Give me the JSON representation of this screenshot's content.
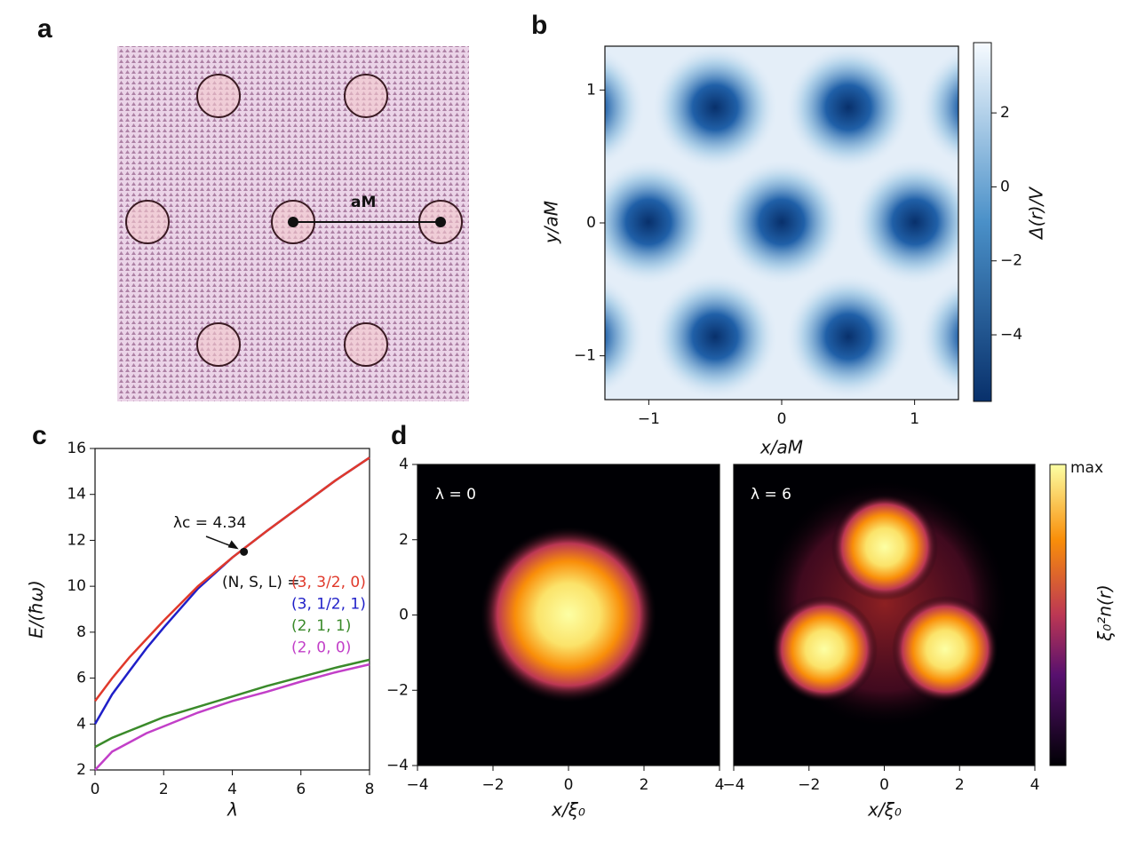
{
  "chart_data": [
    {
      "type": "image",
      "panel": "a",
      "annotation": "aM"
    },
    {
      "type": "heatmap",
      "panel": "b",
      "xlabel": "x/aM",
      "ylabel": "y/aM",
      "colorbar_label": "Δ(r)/V",
      "xlim": [
        -1.33,
        1.33
      ],
      "ylim": [
        -1.33,
        1.33
      ],
      "xticks": [
        {
          "value": -1,
          "label": "−1"
        },
        0,
        1
      ],
      "yticks": [
        {
          "value": -1,
          "label": "−1"
        },
        0,
        1
      ],
      "clim": [
        -5.8,
        3.9
      ],
      "cticks": [
        {
          "value": -4,
          "label": "−4"
        },
        {
          "value": -2,
          "label": "−2"
        },
        0,
        2
      ]
    },
    {
      "type": "line",
      "panel": "c",
      "xlabel": "λ",
      "ylabel": "E/(ħω)",
      "xlim": [
        0,
        8
      ],
      "ylim": [
        2,
        16
      ],
      "xticks": [
        0,
        2,
        4,
        6,
        8
      ],
      "yticks": [
        2,
        4,
        6,
        8,
        10,
        12,
        14,
        16
      ],
      "legend_title": "(N, S, L) =",
      "x": [
        0,
        0.5,
        1,
        1.5,
        2,
        3,
        4,
        5,
        6,
        7,
        8
      ],
      "series": [
        {
          "name": "(3, 3/2, 0)",
          "color": "#e0392b",
          "values": [
            5,
            6.0,
            6.9,
            7.7,
            8.5,
            10.0,
            11.25,
            12.4,
            13.5,
            14.6,
            15.6
          ]
        },
        {
          "name": "(3, 1/2, 1)",
          "color": "#1f1fc8",
          "values": [
            4,
            5.3,
            6.3,
            7.3,
            8.2,
            9.9,
            11.25,
            12.4,
            13.5,
            14.6,
            15.6
          ]
        },
        {
          "name": "(2, 1, 1)",
          "color": "#3a8a2a",
          "values": [
            3,
            3.4,
            3.7,
            4.0,
            4.3,
            4.75,
            5.2,
            5.65,
            6.05,
            6.45,
            6.8
          ]
        },
        {
          "name": "(2, 0, 0)",
          "color": "#c23fc8",
          "values": [
            2,
            2.8,
            3.2,
            3.6,
            3.9,
            4.5,
            5.0,
            5.4,
            5.85,
            6.25,
            6.6
          ]
        }
      ],
      "annotation": {
        "text": "λc = 4.34",
        "x": 4.34,
        "y": 11.5
      }
    },
    {
      "type": "heatmap",
      "panel": "d",
      "xlabel": "x/ξ₀",
      "colorbar_label": "ξ₀²n(r)",
      "colorbar_max": "max",
      "xlim": [
        -4,
        4
      ],
      "ylim": [
        -4,
        4
      ],
      "xticks": [
        {
          "value": -4,
          "label": "−4"
        },
        {
          "value": -2,
          "label": "−2"
        },
        0,
        2,
        4
      ],
      "yticks": [
        {
          "value": -4,
          "label": "−4"
        },
        {
          "value": -2,
          "label": "−2"
        },
        0,
        2,
        4
      ],
      "subplots": [
        {
          "title": "λ = 0"
        },
        {
          "title": "λ = 6"
        }
      ]
    }
  ]
}
